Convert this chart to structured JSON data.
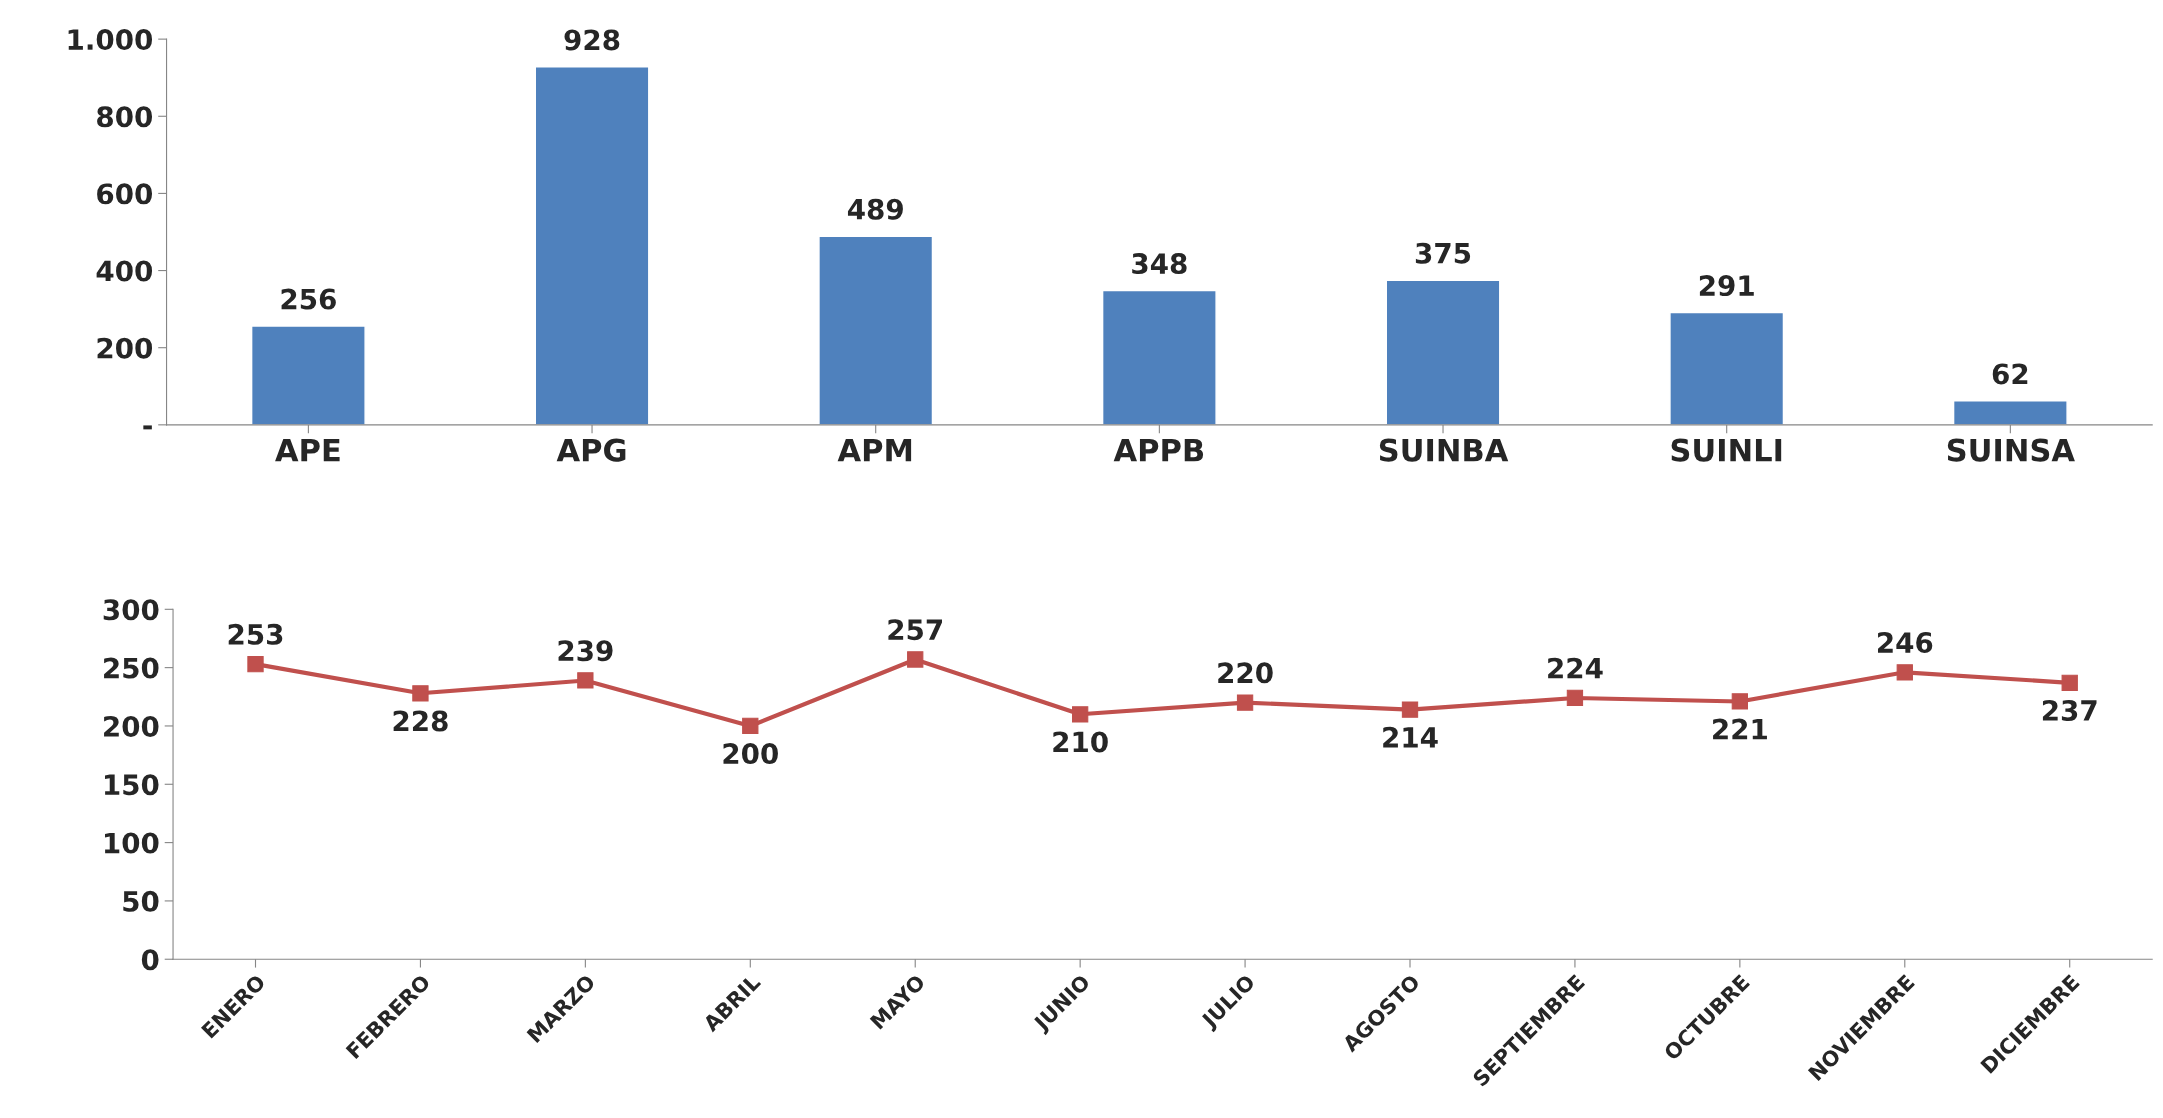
{
  "chart_data": [
    {
      "type": "bar",
      "categories": [
        "APE",
        "APG",
        "APM",
        "APPB",
        "SUINBA",
        "SUINLI",
        "SUINSA"
      ],
      "values": [
        256,
        928,
        489,
        348,
        375,
        291,
        62
      ],
      "color": "#4f81bd",
      "ylim": [
        0,
        1000
      ],
      "yticks": [
        {
          "value": 0,
          "label": "-"
        },
        200,
        400,
        600,
        800,
        {
          "value": 1000,
          "label": "1.000"
        }
      ],
      "data_labels": true,
      "grid": false,
      "legend": false
    },
    {
      "type": "line",
      "categories": [
        "ENERO",
        "FEBRERO",
        "MARZO",
        "ABRIL",
        "MAYO",
        "JUNIO",
        "JULIO",
        "AGOSTO",
        "SEPTIEMBRE",
        "OCTUBRE",
        "NOVIEMBRE",
        "DICIEMBRE"
      ],
      "values": [
        253,
        228,
        239,
        200,
        257,
        210,
        220,
        214,
        224,
        221,
        246,
        237
      ],
      "color": "#c0504d",
      "marker": "square",
      "line_style": "solid",
      "ylim": [
        0,
        300
      ],
      "yticks": [
        0,
        50,
        100,
        150,
        200,
        250,
        300
      ],
      "data_labels": true,
      "grid": false,
      "legend": false
    }
  ]
}
